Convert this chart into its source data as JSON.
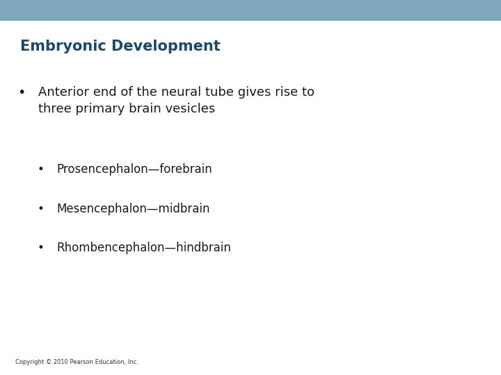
{
  "title": "Embryonic Development",
  "title_color": "#1a4a6b",
  "title_fontsize": 15,
  "background_color": "#ffffff",
  "top_bar_color": "#7fa8c0",
  "top_bar_height": 0.055,
  "bullet1_text": "Anterior end of the neural tube gives rise to\nthree primary brain vesicles",
  "bullet1_fontsize": 13,
  "bullet1_color": "#1a1a1a",
  "sub_bullets": [
    "Prosencephalon—forebrain",
    "Mesencephalon—midbrain",
    "Rhombencephalon—hindbrain"
  ],
  "sub_bullet_fontsize": 12,
  "sub_bullet_color": "#1a1a1a",
  "copyright_text": "Copyright © 2010 Pearson Education, Inc.",
  "copyright_fontsize": 6,
  "copyright_color": "#333333"
}
